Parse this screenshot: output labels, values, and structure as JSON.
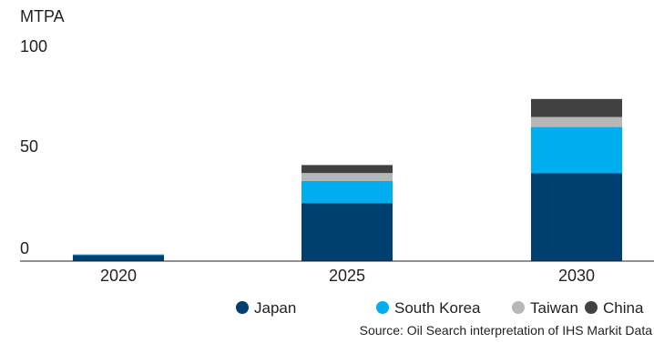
{
  "chart_data": {
    "type": "bar",
    "stacked": true,
    "unit_label": "MTPA",
    "categories": [
      "2020",
      "2025",
      "2030"
    ],
    "series": [
      {
        "name": "Japan",
        "color": "#004070",
        "values": [
          3,
          29,
          44
        ]
      },
      {
        "name": "South Korea",
        "color": "#00aeef",
        "values": [
          0.3,
          11,
          23
        ]
      },
      {
        "name": "Taiwan",
        "color": "#b7b7b7",
        "values": [
          0.2,
          4,
          5
        ]
      },
      {
        "name": "China",
        "color": "#414142",
        "values": [
          0,
          4,
          9
        ]
      }
    ],
    "y_ticks": [
      "0",
      "50",
      "100"
    ],
    "ylim": [
      0,
      100
    ],
    "grid": false,
    "legend_position": "bottom-right",
    "source": "Source: Oil Search interpretation of IHS Markit Data"
  }
}
